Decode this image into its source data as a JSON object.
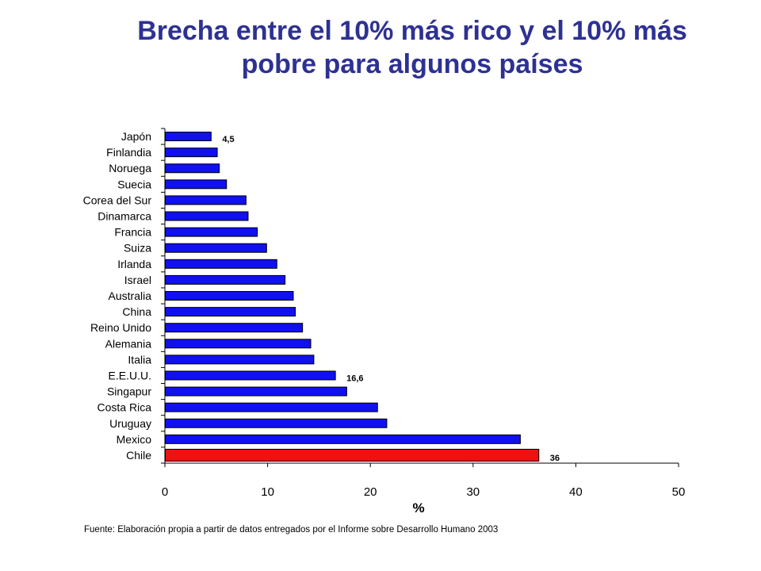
{
  "title_line1": "Brecha entre el 10% más rico y el 10% más",
  "title_line2": "pobre para algunos países",
  "footnote": "Fuente: Elaboración propia a partir de datos entregados por el Informe sobre Desarrollo Humano 2003",
  "colors": {
    "title": "#2E3192",
    "bar": "#1010F0",
    "highlight": "#F01010",
    "outline": "#000000"
  },
  "chart_data": {
    "type": "bar",
    "orientation": "horizontal",
    "title": "Brecha entre el 10% más rico y el 10% más pobre para algunos países",
    "xlabel": "%",
    "ylabel": "",
    "xlim": [
      0,
      50
    ],
    "x_ticks": [
      0,
      10,
      20,
      30,
      40,
      50
    ],
    "grid": false,
    "categories": [
      "Japón",
      "Finlandia",
      "Noruega",
      "Suecia",
      "Corea del Sur",
      "Dinamarca",
      "Francia",
      "Suiza",
      "Irlanda",
      "Israel",
      "Australia",
      "China",
      "Reino Unido",
      "Alemania",
      "Italia",
      "E.E.U.U.",
      "Singapur",
      "Costa Rica",
      "Uruguay",
      "Mexico",
      "Chile"
    ],
    "values": [
      4.5,
      5.1,
      5.3,
      6.0,
      7.9,
      8.1,
      9.0,
      9.9,
      10.9,
      11.7,
      12.5,
      12.7,
      13.4,
      14.2,
      14.5,
      16.6,
      17.7,
      20.7,
      21.6,
      34.6,
      36.4
    ],
    "highlight_category": "Chile",
    "data_labels": [
      {
        "category": "Japón",
        "text": "4,5"
      },
      {
        "category": "E.E.U.U.",
        "text": "16,6"
      },
      {
        "category": "Chile",
        "text": "36"
      }
    ]
  }
}
